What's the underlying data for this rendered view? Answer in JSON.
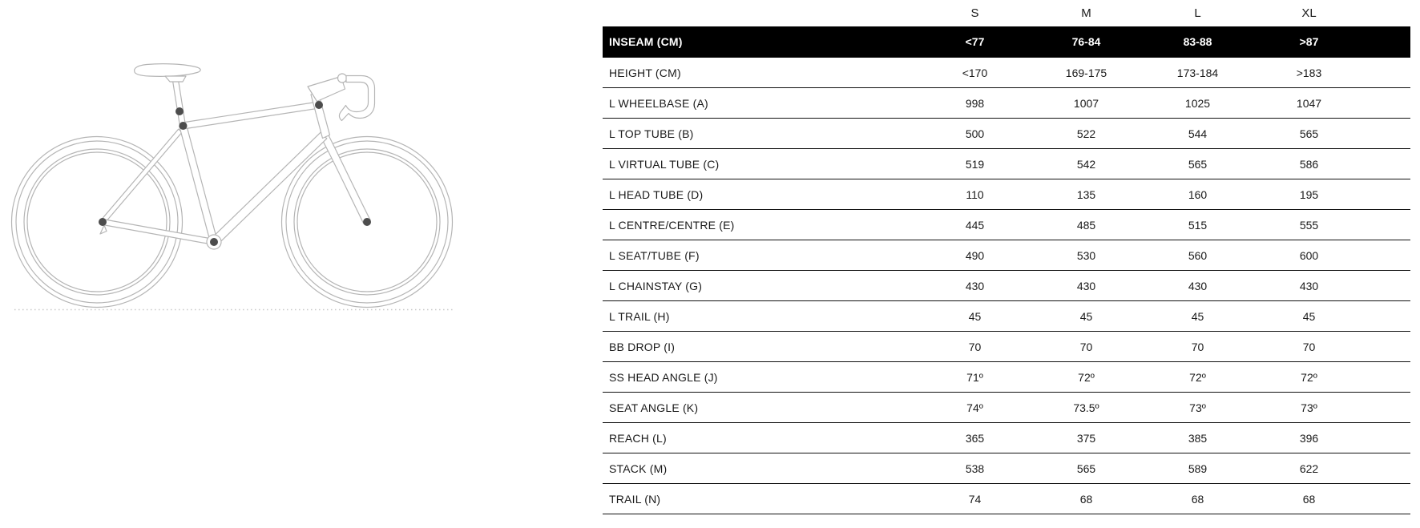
{
  "table": {
    "size_headers": [
      "S",
      "M",
      "L",
      "XL"
    ],
    "rows": [
      {
        "label": "INSEAM (CM)",
        "values": [
          "<77",
          "76-84",
          "83-88",
          ">87"
        ],
        "highlight": true
      },
      {
        "label": "HEIGHT (CM)",
        "values": [
          "<170",
          "169-175",
          "173-184",
          ">183"
        ]
      },
      {
        "label": "L WHEELBASE (A)",
        "values": [
          "998",
          "1007",
          "1025",
          "1047"
        ]
      },
      {
        "label": "L TOP TUBE (B)",
        "values": [
          "500",
          "522",
          "544",
          "565"
        ]
      },
      {
        "label": "L VIRTUAL TUBE (C)",
        "values": [
          "519",
          "542",
          "565",
          "586"
        ]
      },
      {
        "label": "L HEAD TUBE (D)",
        "values": [
          "110",
          "135",
          "160",
          "195"
        ]
      },
      {
        "label": "L CENTRE/CENTRE (E)",
        "values": [
          "445",
          "485",
          "515",
          "555"
        ]
      },
      {
        "label": "L SEAT/TUBE (F)",
        "values": [
          "490",
          "530",
          "560",
          "600"
        ]
      },
      {
        "label": "L CHAINSTAY (G)",
        "values": [
          "430",
          "430",
          "430",
          "430"
        ]
      },
      {
        "label": "L TRAIL (H)",
        "values": [
          "45",
          "45",
          "45",
          "45"
        ]
      },
      {
        "label": "BB DROP (I)",
        "values": [
          "70",
          "70",
          "70",
          "70"
        ]
      },
      {
        "label": "SS HEAD ANGLE (J)",
        "values": [
          "71º",
          "72º",
          "72º",
          "72º"
        ]
      },
      {
        "label": "SEAT ANGLE (K)",
        "values": [
          "74º",
          "73.5º",
          "73º",
          "73º"
        ]
      },
      {
        "label": "REACH (L)",
        "values": [
          "365",
          "375",
          "385",
          "396"
        ]
      },
      {
        "label": "STACK (M)",
        "values": [
          "538",
          "565",
          "589",
          "622"
        ]
      },
      {
        "label": "TRAIL (N)",
        "values": [
          "74",
          "68",
          "68",
          "68"
        ]
      }
    ]
  },
  "diagram": {
    "description": "Outline line drawing of a road bike with drop handlebars, dark dots marking geometry measurement points, dotted ground line"
  },
  "colors": {
    "highlight_row_bg": "#000000",
    "highlight_row_text": "#ffffff",
    "text": "#1a1a1a",
    "row_border": "#111111",
    "bike_outline": "#b5b5b5",
    "measure_dot": "#4d4d4d",
    "ground_line": "#c9c9c9"
  },
  "chart_data": {
    "type": "table",
    "title": "Bike geometry size chart",
    "categories": [
      "S",
      "M",
      "L",
      "XL"
    ],
    "series": [
      {
        "name": "INSEAM (CM)",
        "values": [
          "<77",
          "76-84",
          "83-88",
          ">87"
        ]
      },
      {
        "name": "HEIGHT (CM)",
        "values": [
          "<170",
          "169-175",
          "173-184",
          ">183"
        ]
      },
      {
        "name": "L WHEELBASE (A)",
        "values": [
          998,
          1007,
          1025,
          1047
        ]
      },
      {
        "name": "L TOP TUBE (B)",
        "values": [
          500,
          522,
          544,
          565
        ]
      },
      {
        "name": "L VIRTUAL TUBE (C)",
        "values": [
          519,
          542,
          565,
          586
        ]
      },
      {
        "name": "L HEAD TUBE (D)",
        "values": [
          110,
          135,
          160,
          195
        ]
      },
      {
        "name": "L CENTRE/CENTRE (E)",
        "values": [
          445,
          485,
          515,
          555
        ]
      },
      {
        "name": "L SEAT/TUBE (F)",
        "values": [
          490,
          530,
          560,
          600
        ]
      },
      {
        "name": "L CHAINSTAY (G)",
        "values": [
          430,
          430,
          430,
          430
        ]
      },
      {
        "name": "L TRAIL (H)",
        "values": [
          45,
          45,
          45,
          45
        ]
      },
      {
        "name": "BB DROP (I)",
        "values": [
          70,
          70,
          70,
          70
        ]
      },
      {
        "name": "SS HEAD ANGLE (J)",
        "values": [
          "71º",
          "72º",
          "72º",
          "72º"
        ]
      },
      {
        "name": "SEAT ANGLE (K)",
        "values": [
          "74º",
          "73.5º",
          "73º",
          "73º"
        ]
      },
      {
        "name": "REACH (L)",
        "values": [
          365,
          375,
          385,
          396
        ]
      },
      {
        "name": "STACK (M)",
        "values": [
          538,
          565,
          589,
          622
        ]
      },
      {
        "name": "TRAIL (N)",
        "values": [
          74,
          68,
          68,
          68
        ]
      }
    ]
  }
}
